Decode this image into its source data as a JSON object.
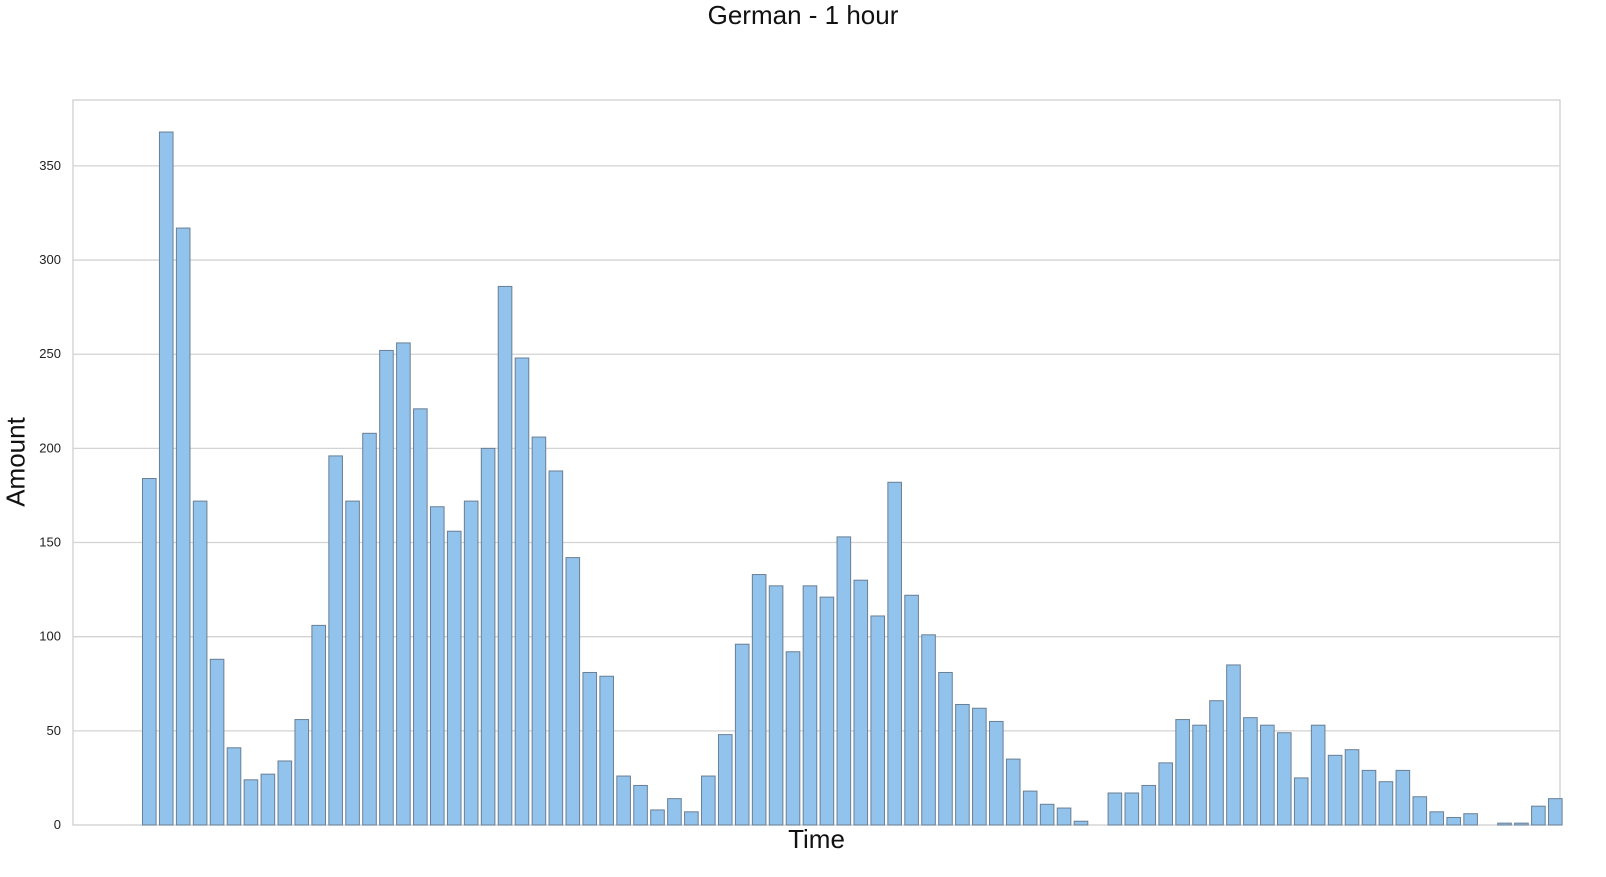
{
  "chart_data": {
    "type": "bar",
    "title": "German - 1 hour",
    "xlabel": "Time",
    "ylabel": "Amount",
    "ylim": [
      0,
      385
    ],
    "yticks": [
      0,
      50,
      100,
      150,
      200,
      250,
      300,
      350
    ],
    "grid": true,
    "bar_color": "#92c3ec",
    "bar_edge_color": "#6a7f94",
    "values": [
      184,
      368,
      317,
      172,
      88,
      41,
      24,
      27,
      34,
      56,
      106,
      196,
      172,
      208,
      252,
      256,
      221,
      169,
      156,
      172,
      200,
      286,
      248,
      206,
      188,
      142,
      81,
      79,
      26,
      21,
      8,
      14,
      7,
      26,
      48,
      96,
      133,
      127,
      92,
      127,
      121,
      153,
      130,
      111,
      182,
      122,
      101,
      81,
      64,
      62,
      55,
      35,
      18,
      11,
      9,
      2,
      0,
      17,
      17,
      21,
      33,
      56,
      53,
      66,
      85,
      57,
      53,
      49,
      25,
      53,
      37,
      40,
      29,
      23,
      29,
      15,
      7,
      4,
      6,
      0,
      1,
      1,
      10,
      14
    ]
  }
}
